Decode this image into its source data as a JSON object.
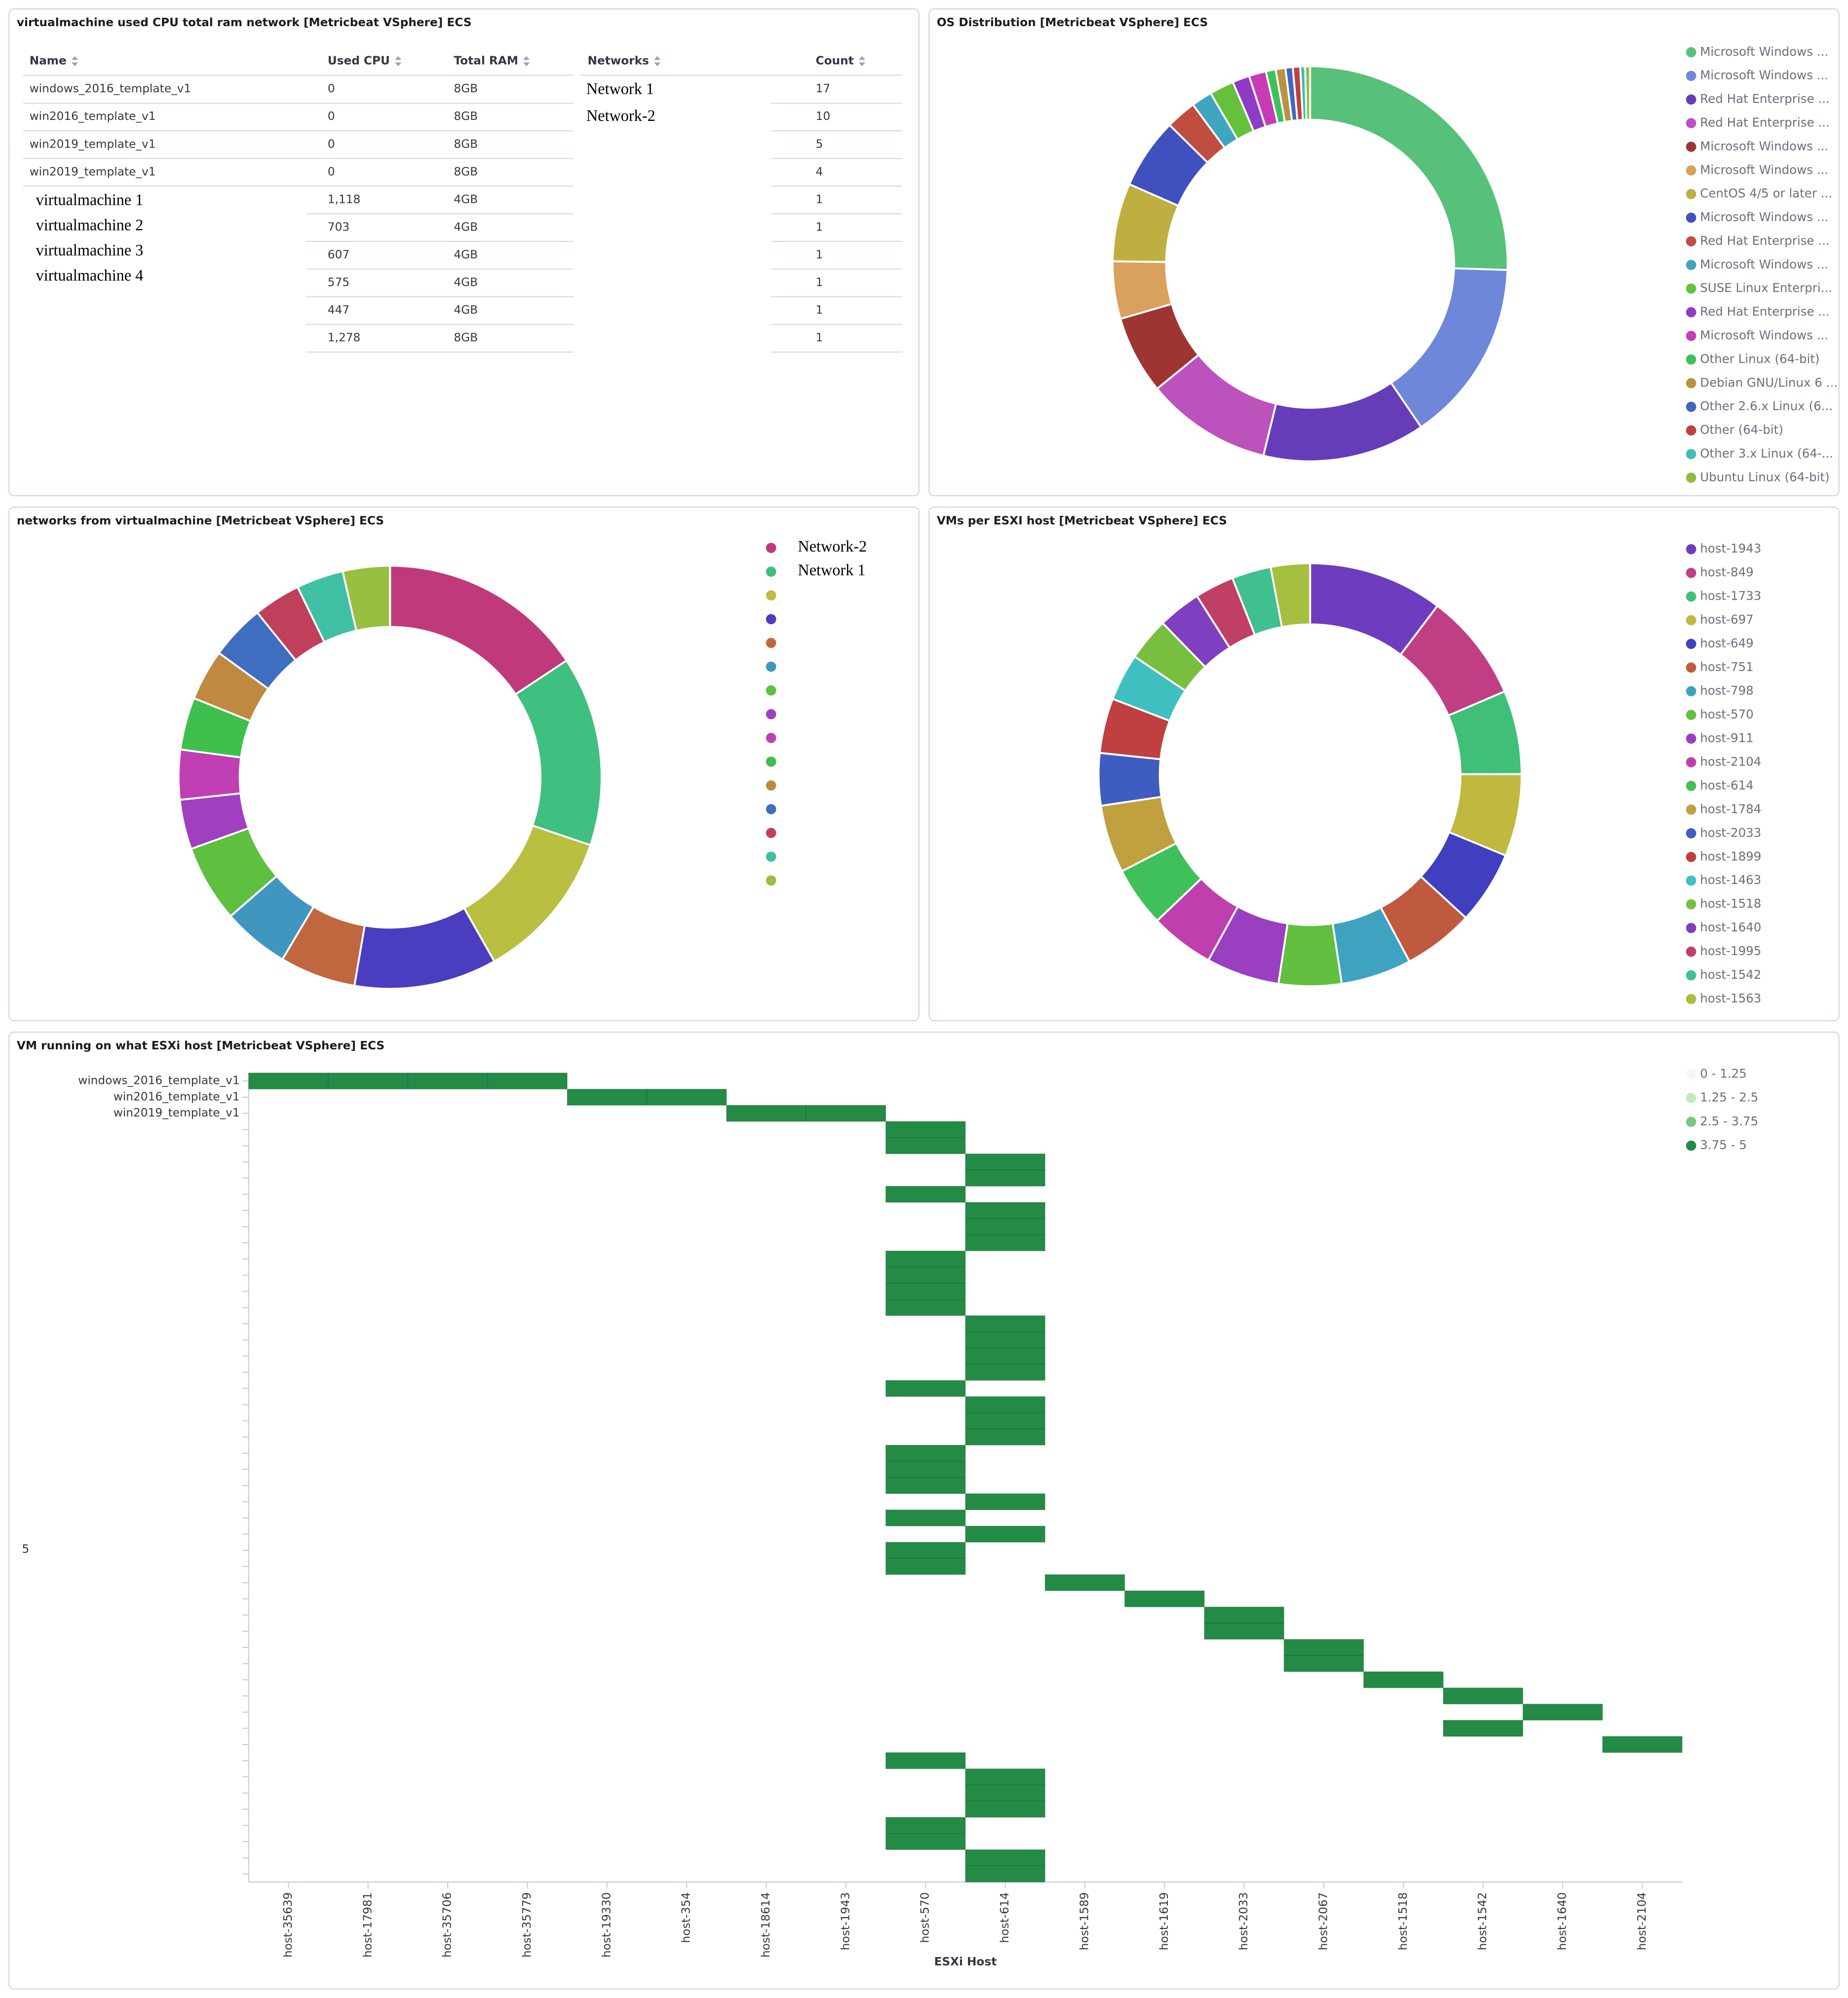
{
  "table": {
    "title": "virtualmachine used CPU total ram network [Metricbeat VSphere] ECS",
    "headers": [
      "Name",
      "Used CPU",
      "Total RAM",
      "Networks",
      "Count"
    ],
    "name": [
      "windows_2016_template_v1",
      "win2016_template_v1",
      "win2019_template_v1",
      "win2019_template_v1"
    ],
    "name_extra": [
      "virtualmachine 1",
      "virtualmachine 2",
      "virtualmachine 3",
      "virtualmachine 4"
    ],
    "used_cpu": [
      "0",
      "0",
      "0",
      "0",
      "1,118",
      "703",
      "607",
      "575",
      "447",
      "1,278"
    ],
    "total_ram": [
      "8GB",
      "8GB",
      "8GB",
      "8GB",
      "4GB",
      "4GB",
      "4GB",
      "4GB",
      "4GB",
      "8GB"
    ],
    "networks": [
      "Network 1",
      "Network-2"
    ],
    "count": [
      "17",
      "10",
      "5",
      "4",
      "1",
      "1",
      "1",
      "1",
      "1",
      "1"
    ]
  },
  "chart_data": [
    {
      "type": "donut",
      "title": "OS Distribution [Metricbeat VSphere] ECS",
      "legend": "right",
      "categories": [
        "Microsoft Windows ...",
        "Microsoft Windows ...",
        "Red Hat Enterprise ...",
        "Red Hat Enterprise ...",
        "Microsoft Windows ...",
        "Microsoft Windows ...",
        "CentOS 4/5 or later ...",
        "Microsoft Windows ...",
        "Red Hat Enterprise ...",
        "Microsoft Windows ...",
        "SUSE Linux Enterpri...",
        "Red Hat Enterprise ...",
        "Microsoft Windows ...",
        "Other Linux (64-bit)",
        "Debian GNU/Linux 6 ...",
        "Other 2.6.x Linux (6...",
        "Other (64-bit)",
        "Other 3.x Linux (64-...",
        "Ubuntu Linux (64-bit)"
      ],
      "values": [
        25.5,
        15,
        13.3,
        10.3,
        6.4,
        4.7,
        6.4,
        5.8,
        2.5,
        1.7,
        2,
        1.4,
        1.4,
        0.8,
        0.8,
        0.6,
        0.6,
        0.4,
        0.4
      ],
      "colors": [
        "#57c17b",
        "#6f87d8",
        "#663db8",
        "#bc52bc",
        "#9e3533",
        "#daa05d",
        "#bfaf40",
        "#4050bf",
        "#bf4d40",
        "#40a5c0",
        "#65c13c",
        "#8e3cc5",
        "#c63cb4",
        "#3dc25b",
        "#b99344",
        "#3f66c0",
        "#bf4040",
        "#40bcb0",
        "#8bc03c"
      ]
    },
    {
      "type": "donut",
      "title": "networks from virtualmachine [Metricbeat VSphere] ECS",
      "legend": "right",
      "categories": [
        "Network-2",
        "Network 1",
        null,
        null,
        null,
        null,
        null,
        null,
        null,
        null,
        null,
        null,
        null,
        null,
        null
      ],
      "values": [
        15.7,
        14.5,
        11.6,
        10.9,
        5.8,
        5.1,
        5.9,
        3.8,
        3.8,
        4,
        3.9,
        4.2,
        3.6,
        3.6,
        3.6
      ],
      "colors": [
        "#c0397a",
        "#3fbf80",
        "#b9bf40",
        "#4a3dbf",
        "#c0673f",
        "#3f97c0",
        "#5fbf3f",
        "#a03fc0",
        "#c03fb4",
        "#3fc04e",
        "#bf8a3f",
        "#3f6ec0",
        "#c03f5a",
        "#3fc0a5",
        "#98bf3f"
      ]
    },
    {
      "type": "donut",
      "title": "VMs per ESXI host [Metricbeat VSphere] ECS",
      "legend": "right",
      "categories": [
        "host-1943",
        "host-849",
        "host-1733",
        "host-697",
        "host-649",
        "host-751",
        "host-798",
        "host-570",
        "host-911",
        "host-2104",
        "host-614",
        "host-1784",
        "host-2033",
        "host-1899",
        "host-1463",
        "host-1518",
        "host-1640",
        "host-1995",
        "host-1542",
        "host-1563"
      ],
      "values": [
        10.3,
        8.3,
        6.4,
        6.3,
        5.6,
        5.4,
        5.4,
        4.8,
        5.6,
        4.9,
        4.6,
        5.2,
        4,
        4.2,
        3.6,
        3.3,
        3.3,
        3,
        3,
        3
      ],
      "colors": [
        "#6e3dbf",
        "#c03f84",
        "#3fbf78",
        "#c0b83f",
        "#3f3fc0",
        "#c05a3f",
        "#3fa2c0",
        "#62bf3f",
        "#9a3fc0",
        "#c03fae",
        "#3fc05b",
        "#c0a03f",
        "#3f5cc0",
        "#c03f40",
        "#3fbfc0",
        "#79bf3f",
        "#7f3fc0",
        "#c03f64",
        "#3fc08e",
        "#a5bf3f"
      ]
    },
    {
      "type": "heatmap",
      "title": "VM running on what ESXi host [Metricbeat VSphere] ECS",
      "x_label": "ESXi Host",
      "y_label": "5",
      "legend": "right",
      "categories": [
        "host-35639",
        "host-17981",
        "host-35706",
        "host-35779",
        "host-19330",
        "host-354",
        "host-18614",
        "host-1943",
        "host-570",
        "host-614",
        "host-1589",
        "host-1619",
        "host-2033",
        "host-2067",
        "host-1518",
        "host-1542",
        "host-1640",
        "host-2104"
      ],
      "rows": [
        "windows_2016_template_v1",
        "win2016_template_v1",
        "win2019_template_v1",
        null,
        null,
        null,
        null,
        null,
        null,
        null,
        null,
        null,
        null,
        null,
        null,
        null,
        null,
        null,
        null,
        null,
        null,
        null,
        null,
        null,
        null,
        null,
        null,
        null,
        null,
        null,
        null,
        null,
        null,
        null,
        null,
        null,
        null,
        null,
        null,
        null,
        null,
        null,
        null,
        null,
        null,
        null,
        null,
        null,
        null,
        null
      ],
      "cells": [
        [
          0,
          0,
          5
        ],
        [
          1,
          0,
          5
        ],
        [
          2,
          0,
          5
        ],
        [
          3,
          0,
          5
        ],
        [
          4,
          1,
          5
        ],
        [
          5,
          1,
          5
        ],
        [
          6,
          2,
          5
        ],
        [
          7,
          2,
          5
        ],
        [
          8,
          3,
          5
        ],
        [
          8,
          4,
          5
        ],
        [
          9,
          5,
          5
        ],
        [
          9,
          6,
          5
        ],
        [
          8,
          7,
          5
        ],
        [
          9,
          8,
          5
        ],
        [
          9,
          9,
          5
        ],
        [
          9,
          10,
          5
        ],
        [
          8,
          11,
          5
        ],
        [
          8,
          12,
          5
        ],
        [
          8,
          13,
          5
        ],
        [
          8,
          14,
          5
        ],
        [
          9,
          15,
          5
        ],
        [
          9,
          16,
          5
        ],
        [
          9,
          17,
          5
        ],
        [
          9,
          18,
          5
        ],
        [
          8,
          19,
          5
        ],
        [
          9,
          20,
          5
        ],
        [
          9,
          21,
          5
        ],
        [
          9,
          22,
          5
        ],
        [
          8,
          23,
          5
        ],
        [
          8,
          24,
          5
        ],
        [
          8,
          25,
          5
        ],
        [
          9,
          26,
          5
        ],
        [
          8,
          27,
          5
        ],
        [
          9,
          28,
          5
        ],
        [
          8,
          29,
          5
        ],
        [
          8,
          30,
          5
        ],
        [
          10,
          31,
          5
        ],
        [
          11,
          32,
          5
        ],
        [
          12,
          33,
          5
        ],
        [
          12,
          34,
          5
        ],
        [
          13,
          35,
          5
        ],
        [
          13,
          36,
          5
        ],
        [
          14,
          37,
          5
        ],
        [
          15,
          38,
          5
        ],
        [
          16,
          39,
          5
        ],
        [
          15,
          40,
          5
        ],
        [
          17,
          41,
          5
        ],
        [
          8,
          42,
          5
        ],
        [
          9,
          43,
          5
        ],
        [
          9,
          44,
          5
        ],
        [
          9,
          45,
          5
        ],
        [
          8,
          46,
          5
        ],
        [
          8,
          47,
          5
        ],
        [
          9,
          48,
          5
        ],
        [
          9,
          49,
          5
        ]
      ],
      "color_ranges": [
        {
          "from": 0,
          "to": 1.25,
          "label": "0 - 1.25",
          "color": "#f2f9ef"
        },
        {
          "from": 1.25,
          "to": 2.5,
          "label": "1.25 - 2.5",
          "color": "#c6e8bf"
        },
        {
          "from": 2.5,
          "to": 3.75,
          "label": "2.5 - 3.75",
          "color": "#7bc77b"
        },
        {
          "from": 3.75,
          "to": 5,
          "label": "3.75 - 5",
          "color": "#238b45"
        }
      ]
    }
  ]
}
